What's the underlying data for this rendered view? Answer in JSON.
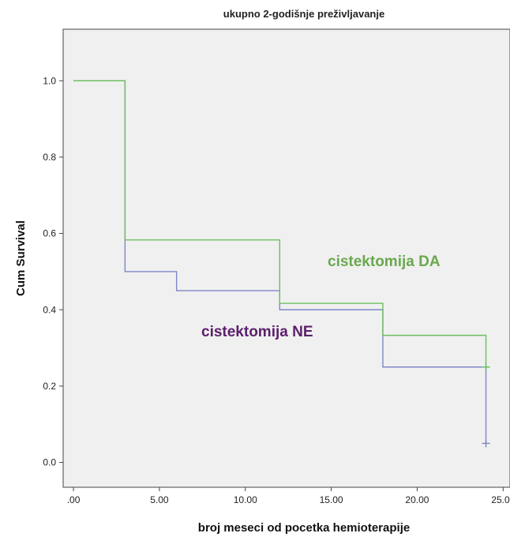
{
  "chart_data": {
    "type": "line",
    "title": "ukupno 2-godišnje preživljavanje",
    "xlabel": "broj meseci od pocetka hemioterapije",
    "ylabel": "Cum Survival",
    "xlim": [
      -0.6,
      25.4
    ],
    "ylim": [
      -0.065,
      1.135
    ],
    "x_ticks": [
      0,
      5,
      10,
      15,
      20,
      25
    ],
    "x_tick_labels": [
      ".00",
      "5.00",
      "10.00",
      "15.00",
      "20.00",
      "25.00"
    ],
    "y_ticks": [
      0,
      0.2,
      0.4,
      0.6,
      0.8,
      1.0
    ],
    "y_tick_labels": [
      "0.0",
      "0.2",
      "0.4",
      "0.6",
      "0.8",
      "1.0"
    ],
    "grid": false,
    "plot_background": "#f0f0f0",
    "series": [
      {
        "name": "cistektomija DA",
        "color": "#6cbf5f",
        "label_color": "#6aa84f",
        "step": true,
        "x": [
          0,
          3,
          12,
          18,
          24
        ],
        "y": [
          1.0,
          0.583,
          0.417,
          0.333,
          0.25
        ],
        "censored": [
          {
            "x": 24,
            "y": 0.25
          }
        ]
      },
      {
        "name": "cistektomija NE",
        "color": "#7f86c8",
        "label_color": "#5b1f6b",
        "step": true,
        "x": [
          0,
          3,
          6,
          12,
          18,
          24
        ],
        "y": [
          1.0,
          0.5,
          0.45,
          0.4,
          0.25,
          0.05
        ],
        "censored": [
          {
            "x": 24,
            "y": 0.05
          }
        ]
      }
    ]
  }
}
